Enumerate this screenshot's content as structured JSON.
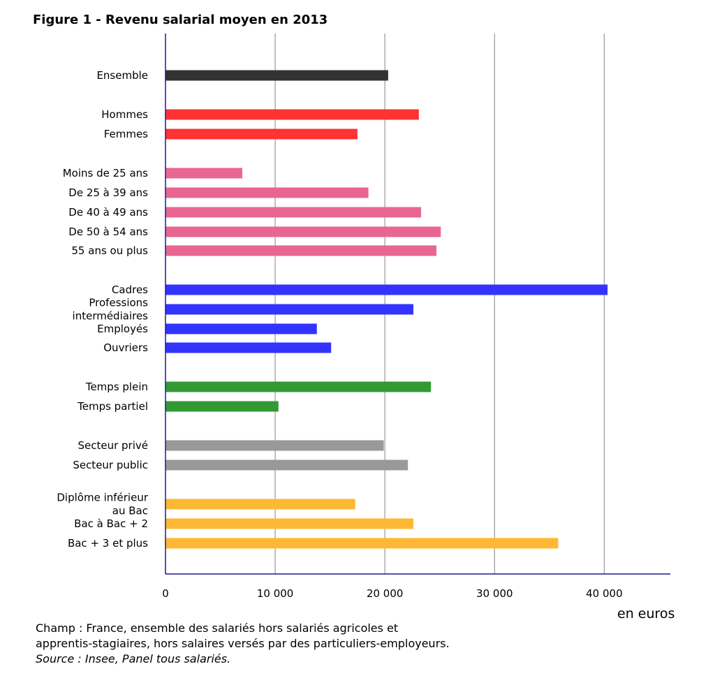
{
  "title": "Figure 1 - Revenu salarial moyen en 2013",
  "unit_label": "en euros",
  "notes": {
    "champ_line1": "Champ : France, ensemble des salariés hors salariés agricoles et",
    "champ_line2": "apprentis-stagiaires, hors salaires versés par des particuliers-employeurs.",
    "source": "Source : Insee, Panel tous salariés."
  },
  "colors": {
    "Ensemble": "#333333",
    "Sexe": "#ff3333",
    "Age": "#e96690",
    "CSP": "#3333ff",
    "Temps": "#339933",
    "Secteur": "#999999",
    "Diplome": "#ffb833"
  },
  "chart_data": {
    "type": "bar",
    "orientation": "horizontal",
    "title": "Figure 1 - Revenu salarial moyen en 2013",
    "xlabel": "en euros",
    "ylabel": "",
    "xlim": [
      0,
      46000
    ],
    "xticks": [
      0,
      10000,
      20000,
      30000,
      40000
    ],
    "xtick_labels": [
      "0",
      "10 000",
      "20 000",
      "30 000",
      "40 000"
    ],
    "grid": "vertical",
    "categories": [
      {
        "label": [
          "Ensemble"
        ],
        "value": 20300,
        "group": "Ensemble"
      },
      {
        "label": [
          "Hommes"
        ],
        "value": 23100,
        "group": "Sexe"
      },
      {
        "label": [
          "Femmes"
        ],
        "value": 17500,
        "group": "Sexe"
      },
      {
        "label": [
          "Moins de 25 ans"
        ],
        "value": 7000,
        "group": "Age"
      },
      {
        "label": [
          "De 25 à 39 ans"
        ],
        "value": 18500,
        "group": "Age"
      },
      {
        "label": [
          "De 40 à 49 ans"
        ],
        "value": 23300,
        "group": "Age"
      },
      {
        "label": [
          "De 50 à 54 ans"
        ],
        "value": 25100,
        "group": "Age"
      },
      {
        "label": [
          "55 ans ou plus"
        ],
        "value": 24700,
        "group": "Age"
      },
      {
        "label": [
          "Cadres"
        ],
        "value": 40300,
        "group": "CSP"
      },
      {
        "label": [
          "Professions",
          "intermédiaires"
        ],
        "value": 22600,
        "group": "CSP"
      },
      {
        "label": [
          "Employés"
        ],
        "value": 13800,
        "group": "CSP"
      },
      {
        "label": [
          "Ouvriers"
        ],
        "value": 15100,
        "group": "CSP"
      },
      {
        "label": [
          "Temps plein"
        ],
        "value": 24200,
        "group": "Temps"
      },
      {
        "label": [
          "Temps partiel"
        ],
        "value": 10300,
        "group": "Temps"
      },
      {
        "label": [
          "Secteur privé"
        ],
        "value": 19900,
        "group": "Secteur"
      },
      {
        "label": [
          "Secteur public"
        ],
        "value": 22100,
        "group": "Secteur"
      },
      {
        "label": [
          "Diplôme inférieur",
          "au Bac"
        ],
        "value": 17300,
        "group": "Diplome"
      },
      {
        "label": [
          "Bac à Bac + 2"
        ],
        "value": 22600,
        "group": "Diplome"
      },
      {
        "label": [
          "Bac + 3 et plus"
        ],
        "value": 35800,
        "group": "Diplome"
      }
    ]
  }
}
